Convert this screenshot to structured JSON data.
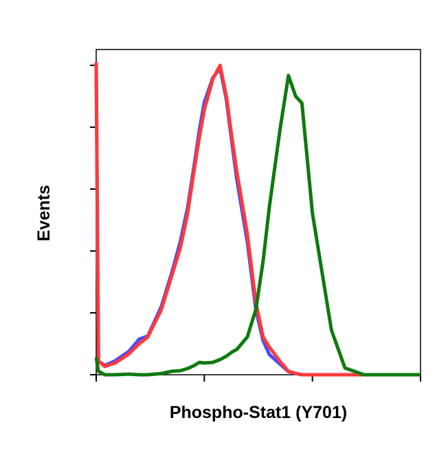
{
  "chart_data": {
    "type": "line",
    "x_label": "Phospho-Stat1 (Y701)",
    "y_label": "Events",
    "x": [
      1,
      1.05,
      1.2,
      1.5,
      2,
      2.5,
      3,
      4,
      5,
      6,
      7,
      8,
      9,
      10,
      12,
      14,
      16,
      18,
      20,
      25,
      30,
      35,
      40,
      50,
      60,
      70,
      80,
      100,
      150,
      200,
      300,
      500,
      1000
    ],
    "series": [
      {
        "color": "#4a4aff",
        "values": [
          101,
          4.4,
          3,
          4.5,
          7.5,
          11.5,
          12.5,
          22,
          33,
          43,
          54,
          67,
          79,
          88,
          96,
          99,
          89,
          75,
          63,
          43,
          21,
          11,
          6.5,
          3.5,
          1,
          0.4,
          0,
          0,
          0,
          0,
          0,
          0,
          0
        ]
      },
      {
        "color": "#ff3a3a",
        "values": [
          101,
          4.4,
          2.7,
          3.8,
          6.7,
          10,
          12.2,
          21,
          32,
          41,
          52,
          65.6,
          76.7,
          85.6,
          95.6,
          100,
          90,
          76.7,
          65.6,
          45.6,
          23.3,
          12.2,
          8.9,
          4.4,
          1.1,
          0.4,
          0,
          0,
          0,
          0,
          0,
          0,
          0
        ]
      },
      {
        "color": "#0f7a0f",
        "values": [
          5.6,
          1.1,
          0,
          0,
          0.2,
          0,
          0,
          0.4,
          1.1,
          1.3,
          2,
          2.9,
          4,
          3.8,
          4,
          4.9,
          6,
          7.3,
          8.2,
          12.2,
          21.1,
          36.7,
          54.4,
          78.9,
          96.7,
          90,
          87.8,
          52.2,
          14.4,
          2.2,
          0,
          0,
          0
        ]
      }
    ],
    "xlim": [
      1,
      1000
    ],
    "xticks": [
      1,
      10,
      100,
      1000
    ],
    "x_log": true,
    "ylim": [
      0,
      105.1
    ],
    "yticks": [
      0,
      20,
      40,
      60,
      80,
      100
    ]
  }
}
